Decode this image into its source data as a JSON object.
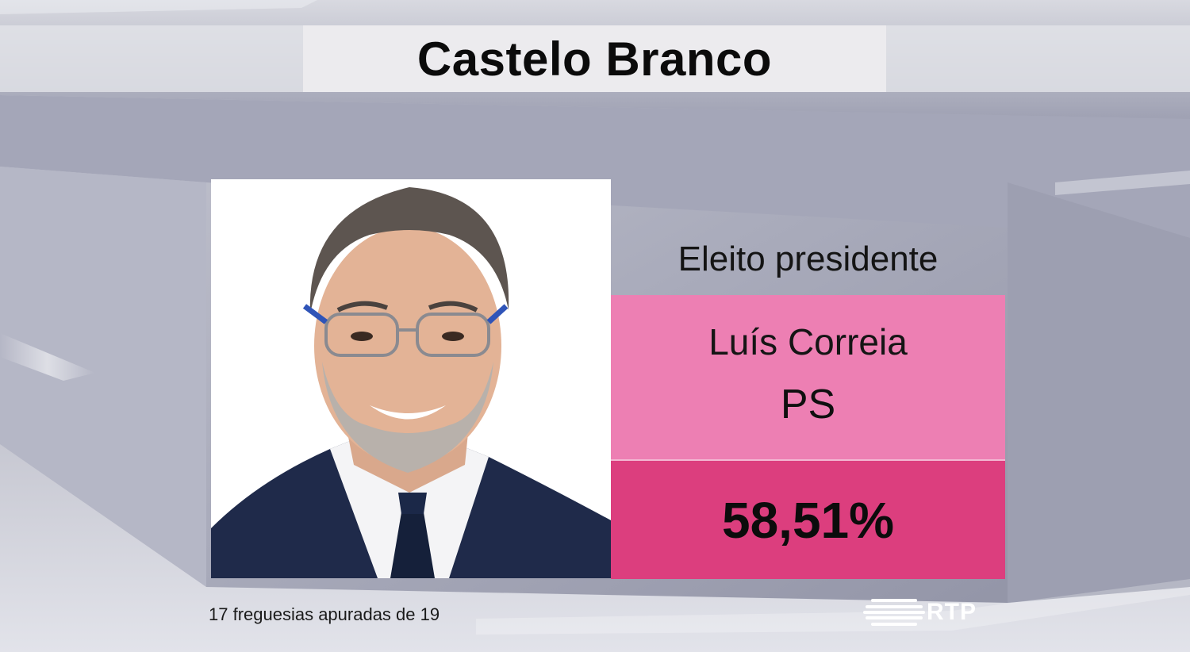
{
  "header": {
    "title": "Castelo Branco"
  },
  "result": {
    "status_label": "Eleito presidente",
    "candidate_name": "Luís Correia",
    "party": "PS",
    "percentage": "58,51%"
  },
  "footer": {
    "parishes_note": "17 freguesias apuradas de 19",
    "logo_text": "RTP"
  },
  "colors": {
    "candidate_box": "#ed7fb3",
    "percentage_box": "#dc3e7e",
    "title_box": "#ecebee"
  },
  "icons": {
    "photo": "candidate-portrait",
    "logo": "rtp-logo"
  }
}
